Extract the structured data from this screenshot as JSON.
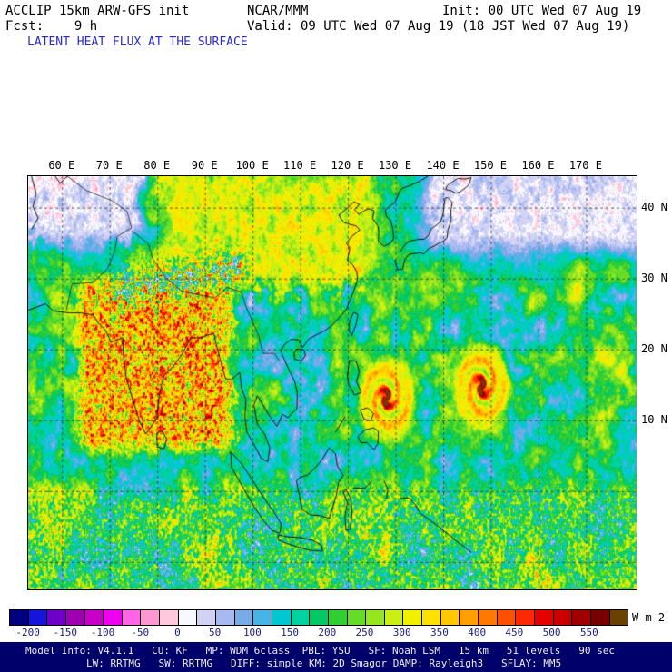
{
  "header": {
    "model": "ACCLIP 15km ARW-GFS init",
    "center": "NCAR/MMM",
    "init": "Init: 00 UTC Wed 07 Aug 19",
    "fcst": "Fcst:    9 h",
    "valid": "Valid: 09 UTC Wed 07 Aug 19 (18 JST Wed 07 Aug 19)",
    "title": "LATENT HEAT FLUX AT THE SURFACE",
    "title_color": "#2a2ac8"
  },
  "map": {
    "lon_labels": [
      "60 E",
      "70 E",
      "80 E",
      "90 E",
      "100 E",
      "110 E",
      "120 E",
      "130 E",
      "140 E",
      "150 E",
      "160 E",
      "170 E"
    ],
    "lat_labels": [
      "40 N",
      "30 N",
      "20 N",
      "10 N"
    ],
    "typhoons": [
      {
        "lon": 128.0,
        "lat": 13.2
      },
      {
        "lon": 148.0,
        "lat": 14.8
      }
    ]
  },
  "colorbar": {
    "units": "W m-2",
    "min": -225,
    "max": 600,
    "step": 25,
    "tick_labels": [
      "-200",
      "-150",
      "-100",
      "-50",
      "0",
      "50",
      "100",
      "150",
      "200",
      "250",
      "300",
      "350",
      "400",
      "450",
      "500",
      "550"
    ],
    "tick_values": [
      -200,
      -150,
      -100,
      -50,
      0,
      50,
      100,
      150,
      200,
      250,
      300,
      350,
      400,
      450,
      500,
      550
    ],
    "colors": [
      "#000082",
      "#1414dc",
      "#6e00c8",
      "#a000b4",
      "#c800c8",
      "#f000f0",
      "#ff64e6",
      "#ff96d2",
      "#ffc8dc",
      "#f8f8ff",
      "#d2d2f5",
      "#a8b8f0",
      "#78aae6",
      "#46b4e6",
      "#00c8d2",
      "#00d2a0",
      "#00c864",
      "#32cd32",
      "#64dc28",
      "#96e61e",
      "#c8f014",
      "#f0f000",
      "#ffe100",
      "#ffc800",
      "#ffa000",
      "#ff7800",
      "#ff5000",
      "#ff2800",
      "#e60000",
      "#c80000",
      "#a00000",
      "#780000",
      "#6b4100"
    ]
  },
  "footer": {
    "bg": "#00006b",
    "line1": "Model Info: V4.1.1   CU: KF   MP: WDM 6class  PBL: YSU   SF: Noah LSM   15 km   51 levels   90 sec",
    "line2": "LW: RRTMG   SW: RRTMG   DIFF: simple KM: 2D Smagor DAMP: Rayleigh3   SFLAY: MM5"
  }
}
